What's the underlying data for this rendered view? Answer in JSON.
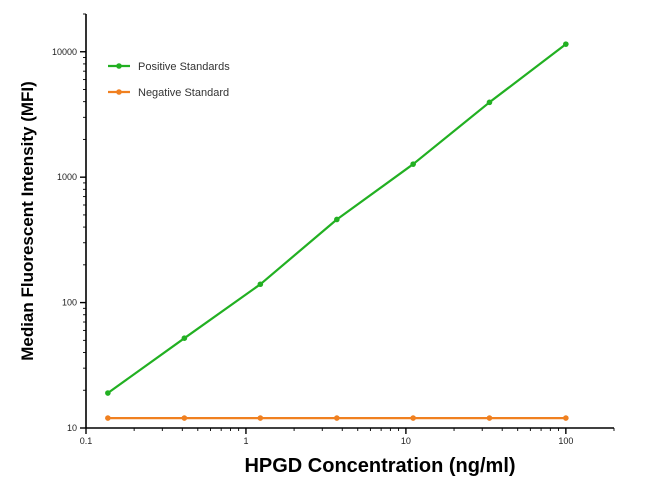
{
  "chart_data": {
    "type": "line",
    "title": "",
    "xlabel": "HPGD Concentration (ng/ml)",
    "ylabel": "Median  Fluorescent Intensity  (MFI)",
    "x_scale": "log",
    "y_scale": "log",
    "xlim": [
      0.1,
      200
    ],
    "ylim": [
      10,
      20000
    ],
    "x_ticks": [
      0.1,
      1,
      10,
      100
    ],
    "x_tick_labels": [
      "0.1",
      "1",
      "10",
      "100"
    ],
    "y_ticks": [
      10,
      100,
      1000,
      10000
    ],
    "y_tick_labels": [
      "10",
      "100",
      "1000",
      "10000"
    ],
    "grid": false,
    "legend_position": "top-left",
    "series": [
      {
        "name": "Positive Standards",
        "color": "#22b022",
        "x": [
          0.137,
          0.412,
          1.23,
          3.7,
          11.1,
          33.3,
          100
        ],
        "y": [
          19,
          52,
          140,
          460,
          1270,
          3950,
          11500
        ]
      },
      {
        "name": "Negative Standard",
        "color": "#f08020",
        "x": [
          0.137,
          0.412,
          1.23,
          3.7,
          11.1,
          33.3,
          100
        ],
        "y": [
          12,
          12,
          12,
          12,
          12,
          12,
          12
        ]
      }
    ]
  }
}
